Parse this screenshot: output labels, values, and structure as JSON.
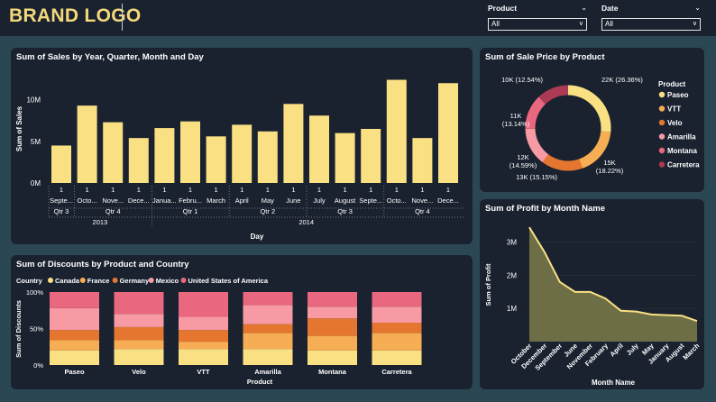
{
  "header": {
    "logo": "BRAND LOGO"
  },
  "filters": [
    {
      "label": "Product",
      "value": "All"
    },
    {
      "label": "Date",
      "value": "All"
    }
  ],
  "colors": {
    "background": "#2b4754",
    "panel": "#1a2230",
    "accent": "#f3d97a",
    "paseo": "#f9e083",
    "vtt": "#f6ad53",
    "velo": "#e4762f",
    "amarilla": "#f79aa3",
    "montana": "#e9677f",
    "carretera": "#ad3a55"
  },
  "sales": {
    "title": "Sum of Sales by Year, Quarter, Month and Day",
    "ylabel": "Sum of Sales",
    "xlabel": "Day",
    "ticks": [
      "10M",
      "5M",
      "0M"
    ],
    "quarters": [
      {
        "label": "Qtr 3",
        "span": [
          0,
          0
        ]
      },
      {
        "label": "Qtr 4",
        "span": [
          1,
          3
        ]
      },
      {
        "label": "Qtr 1",
        "span": [
          4,
          6
        ]
      },
      {
        "label": "Qtr 2",
        "span": [
          7,
          9
        ]
      },
      {
        "label": "Qtr 3",
        "span": [
          10,
          12
        ]
      },
      {
        "label": "Qtr 4",
        "span": [
          13,
          15
        ]
      }
    ],
    "years": [
      {
        "label": "2013",
        "span": [
          0,
          3
        ]
      },
      {
        "label": "2014",
        "span": [
          4,
          15
        ]
      }
    ]
  },
  "salePrice": {
    "title": "Sum of Sale Price by Product",
    "legend_title": "Product"
  },
  "discounts": {
    "title": "Sum of Discounts by Product and Country",
    "legend_title": "Country",
    "ylabel": "Sum of Discounts",
    "xlabel": "Product",
    "ticks": [
      "100%",
      "50%",
      "0%"
    ]
  },
  "profit": {
    "title": "Sum of Profit by Month Name",
    "ylabel": "Sum of Profit",
    "xlabel": "Month Name",
    "ticks": [
      "3M",
      "2M",
      "1M"
    ]
  },
  "chart_data": [
    {
      "type": "bar",
      "title": "Sum of Sales by Year, Quarter, Month and Day",
      "xlabel": "Day",
      "ylabel": "Sum of Sales",
      "ylim": [
        0,
        13000000
      ],
      "categories": [
        "Septe...",
        "Octo...",
        "Nove...",
        "Dece...",
        "Janua...",
        "Febru...",
        "March",
        "April",
        "May",
        "June",
        "July",
        "August",
        "Septe...",
        "Octo...",
        "Nove...",
        "Dece..."
      ],
      "day_labels": [
        "1",
        "1",
        "1",
        "1",
        "1",
        "1",
        "1",
        "1",
        "1",
        "1",
        "1",
        "1",
        "1",
        "1",
        "1",
        "1"
      ],
      "values": [
        4500000,
        9300000,
        7300000,
        5400000,
        6600000,
        7400000,
        5600000,
        7000000,
        6200000,
        9500000,
        8100000,
        6000000,
        6500000,
        12400000,
        5400000,
        12000000
      ]
    },
    {
      "type": "pie",
      "title": "Sum of Sale Price by Product",
      "categories": [
        "Paseo",
        "VTT",
        "Velo",
        "Amarilla",
        "Montana",
        "Carretera"
      ],
      "values": [
        22000,
        15000,
        13000,
        12000,
        11000,
        10000
      ],
      "percents": [
        26.36,
        18.22,
        15.15,
        14.59,
        13.14,
        12.54
      ],
      "labels": [
        "22K (26.36%)",
        "15K (18.22%)",
        "13K (15.15%)",
        "12K (14.59%)",
        "11K (13.14%)",
        "10K (12.54%)"
      ],
      "legend": "right"
    },
    {
      "type": "bar",
      "stacked": "percent",
      "title": "Sum of Discounts by Product and Country",
      "xlabel": "Product",
      "ylabel": "Sum of Discounts",
      "ylim": [
        0,
        100
      ],
      "legend": "top",
      "categories": [
        "Paseo",
        "Velo",
        "VTT",
        "Amarilla",
        "Montana",
        "Carretera"
      ],
      "series": [
        {
          "name": "Canada",
          "values": [
            20,
            22,
            22,
            22,
            20,
            20
          ]
        },
        {
          "name": "France",
          "values": [
            14,
            12,
            10,
            22,
            20,
            24
          ]
        },
        {
          "name": "Germany",
          "values": [
            14,
            18,
            16,
            12,
            24,
            14
          ]
        },
        {
          "name": "Mexico",
          "values": [
            30,
            18,
            18,
            26,
            16,
            22
          ]
        },
        {
          "name": "United States of America",
          "values": [
            22,
            30,
            34,
            18,
            20,
            20
          ]
        }
      ]
    },
    {
      "type": "area",
      "title": "Sum of Profit by Month Name",
      "xlabel": "Month Name",
      "ylabel": "Sum of Profit",
      "ylim": [
        0,
        3700000
      ],
      "categories": [
        "October",
        "December",
        "September",
        "June",
        "November",
        "February",
        "April",
        "July",
        "May",
        "January",
        "August",
        "March"
      ],
      "values": [
        3450000,
        2700000,
        1800000,
        1500000,
        1500000,
        1300000,
        930000,
        910000,
        820000,
        800000,
        780000,
        620000
      ]
    }
  ]
}
